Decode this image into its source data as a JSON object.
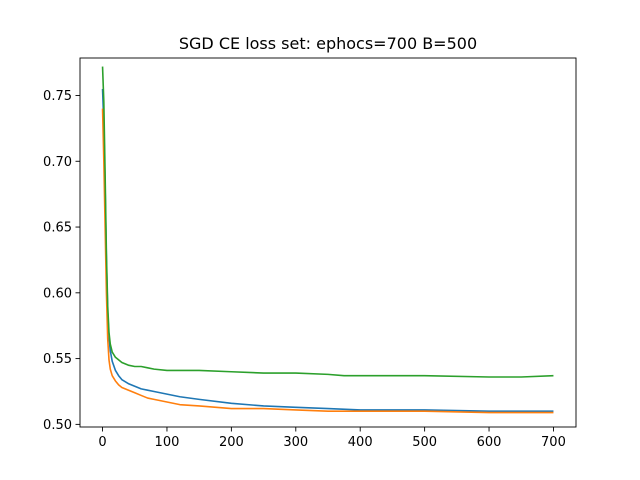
{
  "chart_data": {
    "type": "line",
    "title": "SGD CE loss set: ephocs=700 B=500",
    "xlabel": "",
    "ylabel": "",
    "xlim": [
      -35,
      735
    ],
    "ylim": [
      0.498,
      0.7785
    ],
    "grid": false,
    "legend": "none",
    "xticks": [
      0,
      100,
      200,
      300,
      400,
      500,
      600,
      700
    ],
    "yticks": [
      0.5,
      0.55,
      0.6,
      0.65,
      0.7,
      0.75
    ],
    "xtick_labels": [
      "0",
      "100",
      "200",
      "300",
      "400",
      "500",
      "600",
      "700"
    ],
    "ytick_labels": [
      "0.50",
      "0.55",
      "0.60",
      "0.65",
      "0.70",
      "0.75"
    ],
    "series": [
      {
        "color": "#1f77b4",
        "x": [
          0,
          2,
          4,
          6,
          8,
          10,
          12,
          15,
          20,
          25,
          30,
          40,
          50,
          60,
          70,
          80,
          100,
          120,
          150,
          200,
          250,
          300,
          350,
          400,
          500,
          600,
          700
        ],
        "y": [
          0.755,
          0.728,
          0.68,
          0.625,
          0.585,
          0.566,
          0.556,
          0.548,
          0.541,
          0.537,
          0.534,
          0.531,
          0.529,
          0.527,
          0.526,
          0.525,
          0.523,
          0.521,
          0.519,
          0.516,
          0.514,
          0.513,
          0.512,
          0.511,
          0.511,
          0.51,
          0.51
        ]
      },
      {
        "color": "#ff7f0e",
        "x": [
          0,
          2,
          4,
          6,
          8,
          10,
          12,
          15,
          20,
          25,
          30,
          40,
          50,
          60,
          70,
          80,
          100,
          120,
          150,
          200,
          250,
          300,
          350,
          400,
          500,
          600,
          700
        ],
        "y": [
          0.74,
          0.7,
          0.65,
          0.6,
          0.565,
          0.549,
          0.542,
          0.537,
          0.533,
          0.53,
          0.528,
          0.526,
          0.524,
          0.522,
          0.52,
          0.519,
          0.517,
          0.515,
          0.514,
          0.512,
          0.512,
          0.511,
          0.51,
          0.51,
          0.51,
          0.509,
          0.509
        ]
      },
      {
        "color": "#2ca02c",
        "x": [
          0,
          2,
          4,
          6,
          8,
          10,
          12,
          15,
          20,
          25,
          30,
          40,
          50,
          60,
          70,
          80,
          100,
          120,
          150,
          200,
          250,
          300,
          350,
          375,
          400,
          500,
          600,
          650,
          700
        ],
        "y": [
          0.772,
          0.745,
          0.69,
          0.63,
          0.59,
          0.57,
          0.561,
          0.555,
          0.551,
          0.549,
          0.547,
          0.545,
          0.544,
          0.544,
          0.543,
          0.542,
          0.541,
          0.541,
          0.541,
          0.54,
          0.539,
          0.539,
          0.538,
          0.537,
          0.537,
          0.537,
          0.536,
          0.536,
          0.537
        ]
      }
    ]
  }
}
